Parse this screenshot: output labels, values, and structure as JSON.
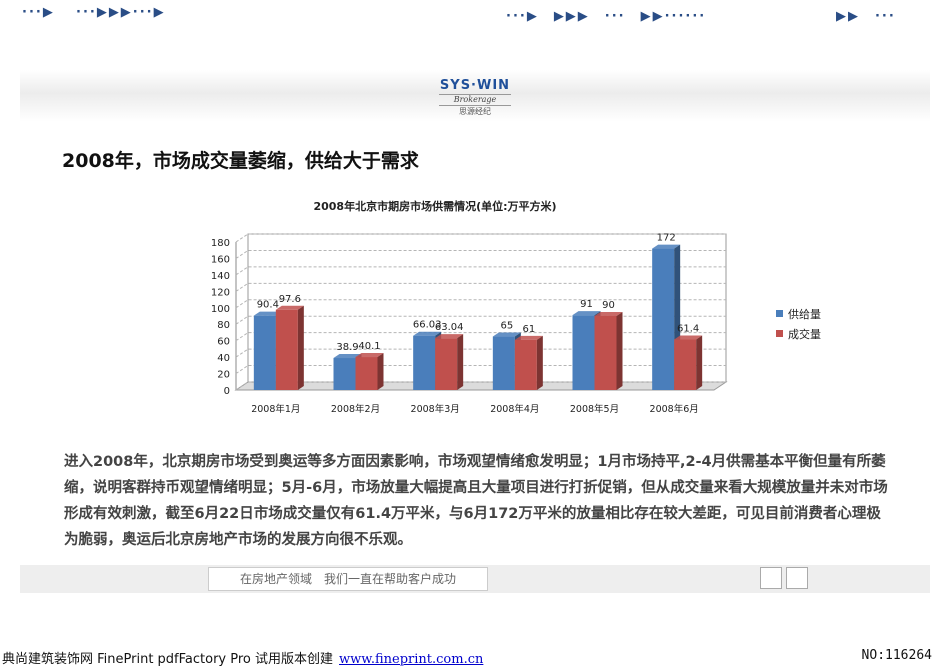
{
  "logo": {
    "brand": "SYS·WIN",
    "sub": "Brokerage",
    "cn": "思源经纪"
  },
  "page": {
    "title": "2008年，市场成交量萎缩，供给大于需求"
  },
  "chart_data": {
    "type": "bar",
    "title": "2008年北京市期房市场供需情况(单位:万平方米)",
    "categories": [
      "2008年1月",
      "2008年2月",
      "2008年3月",
      "2008年4月",
      "2008年5月",
      "2008年6月"
    ],
    "series": [
      {
        "name": "供给量",
        "values": [
          90.4,
          38.9,
          66.03,
          65,
          91,
          172
        ],
        "labels": [
          "90.4",
          "38.9",
          "66.03",
          "65",
          "91",
          "172"
        ],
        "color": "#4a7ebb"
      },
      {
        "name": "成交量",
        "values": [
          97.6,
          40.1,
          63.04,
          61,
          90,
          61.4
        ],
        "labels": [
          "97.6",
          "40.1",
          "63.04",
          "61",
          "90",
          "61.4"
        ],
        "color": "#c0504d"
      }
    ],
    "ylim": [
      0,
      180
    ],
    "yticks": [
      0,
      20,
      40,
      60,
      80,
      100,
      120,
      140,
      160,
      180
    ],
    "grid": true,
    "legend_position": "right"
  },
  "body": {
    "paragraph": "进入2008年，北京期房市场受到奥运等多方面因素影响，市场观望情绪愈发明显；1月市场持平,2-4月供需基本平衡但量有所萎缩，说明客群持币观望情绪明显；5月-6月，市场放量大幅提高且大量项目进行打折促销，但从成交量来看大规模放量并未对市场形成有效刺激，截至6月22日市场成交量仅有61.4万平米，与6月172万平米的放量相比存在较大差距，可见目前消费者心理极为脆弱，奥运后北京房地产市场的发展方向很不乐观。"
  },
  "nav": {
    "seg1": "···▶",
    "seg2": "···▶▶▶···▶",
    "slogan": "在房地产领域　我们一直在帮助客户成功",
    "seg3": "···▶　▶▶▶　···　▶▶······",
    "seg4": "▶▶　···"
  },
  "footer": {
    "left": "典尚建筑装饰网 FinePrint pdfFactory Pro 试用版本创建",
    "link": "www.fineprint.com.cn",
    "right": "NO:116264"
  }
}
